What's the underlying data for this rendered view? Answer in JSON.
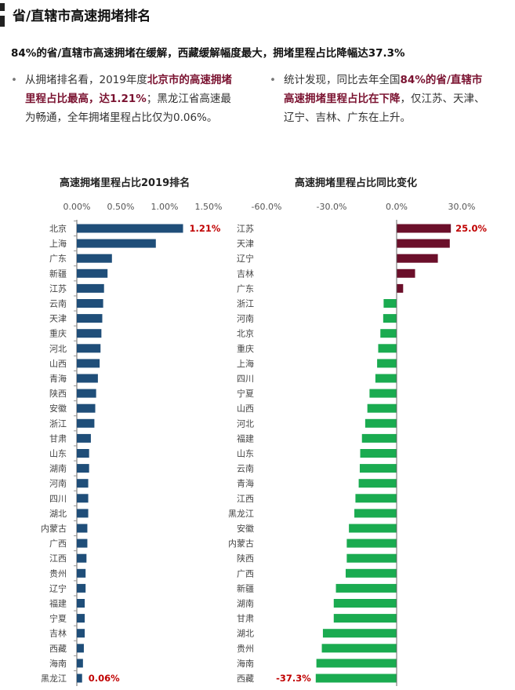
{
  "page": {
    "title": "省/直辖市高速拥堵排名",
    "headline": "84%的省/直辖市高速拥堵在缓解，西藏缓解幅度最大，拥堵里程占比降幅达37.3%",
    "bullet_marker": "•",
    "bullet_left": {
      "t1": "从拥堵排名看，2019年度",
      "h1": "北京市的高速拥堵里程占比最高，达1.21%",
      "t2": "；黑龙江省高速最为畅通，全年拥堵里程占比仅为0.06%。"
    },
    "bullet_right": {
      "t1": "统计发现，同比去年全国",
      "h1": "84%的省/直辖市高速拥堵里程占比在下降",
      "t2": "，仅江苏、天津、辽宁、吉林、广东在上升。"
    }
  },
  "colors": {
    "navy": "#1f4e79",
    "maroon": "#6b0f2a",
    "green": "#1aab50",
    "label_red": "#c00000"
  },
  "chart_data": [
    {
      "type": "bar",
      "orientation": "horizontal",
      "title": "高速拥堵里程占比2019排名",
      "xlim": [
        0,
        1.5
      ],
      "ticks": [
        "0.00%",
        "0.50%",
        "1.00%",
        "1.50%"
      ],
      "tick_values": [
        0,
        0.5,
        1.0,
        1.5
      ],
      "categories": [
        "北京",
        "上海",
        "广东",
        "新疆",
        "江苏",
        "云南",
        "天津",
        "重庆",
        "河北",
        "山西",
        "青海",
        "陕西",
        "安徽",
        "浙江",
        "甘肃",
        "山东",
        "湖南",
        "河南",
        "四川",
        "湖北",
        "内蒙古",
        "广西",
        "江西",
        "贵州",
        "辽宁",
        "福建",
        "宁夏",
        "吉林",
        "西藏",
        "海南",
        "黑龙江"
      ],
      "values": [
        1.21,
        0.9,
        0.4,
        0.35,
        0.31,
        0.3,
        0.29,
        0.28,
        0.27,
        0.26,
        0.24,
        0.22,
        0.21,
        0.2,
        0.16,
        0.14,
        0.14,
        0.13,
        0.13,
        0.13,
        0.12,
        0.12,
        0.11,
        0.1,
        0.1,
        0.09,
        0.09,
        0.09,
        0.08,
        0.07,
        0.06
      ],
      "data_labels": [
        {
          "index": 0,
          "text": "1.21%"
        },
        {
          "index": 30,
          "text": "0.06%"
        }
      ]
    },
    {
      "type": "bar",
      "orientation": "horizontal",
      "title": "高速拥堵里程占比同比变化",
      "xlim": [
        -60,
        30
      ],
      "ticks": [
        "-60.0%",
        "-30.0%",
        "0.0%",
        "30.0%"
      ],
      "tick_values": [
        -60,
        -30,
        0,
        30
      ],
      "categories": [
        "江苏",
        "天津",
        "辽宁",
        "吉林",
        "广东",
        "浙江",
        "河南",
        "北京",
        "重庆",
        "上海",
        "四川",
        "宁夏",
        "山西",
        "河北",
        "福建",
        "山东",
        "云南",
        "青海",
        "江西",
        "黑龙江",
        "安徽",
        "内蒙古",
        "陕西",
        "广西",
        "新疆",
        "湖南",
        "甘肃",
        "湖北",
        "贵州",
        "海南",
        "西藏"
      ],
      "values": [
        25.0,
        24.5,
        19.0,
        8.5,
        3.0,
        -6.0,
        -6.2,
        -7.5,
        -8.5,
        -9.0,
        -9.8,
        -12.5,
        -13.5,
        -14.5,
        -16.0,
        -16.8,
        -17.0,
        -17.5,
        -19.0,
        -19.5,
        -22.0,
        -23.0,
        -23.0,
        -23.5,
        -28.0,
        -29.0,
        -29.0,
        -34.0,
        -34.5,
        -37.0,
        -37.3
      ],
      "data_labels": [
        {
          "index": 0,
          "text": "25.0%"
        },
        {
          "index": 30,
          "text": "-37.3%"
        }
      ]
    }
  ]
}
